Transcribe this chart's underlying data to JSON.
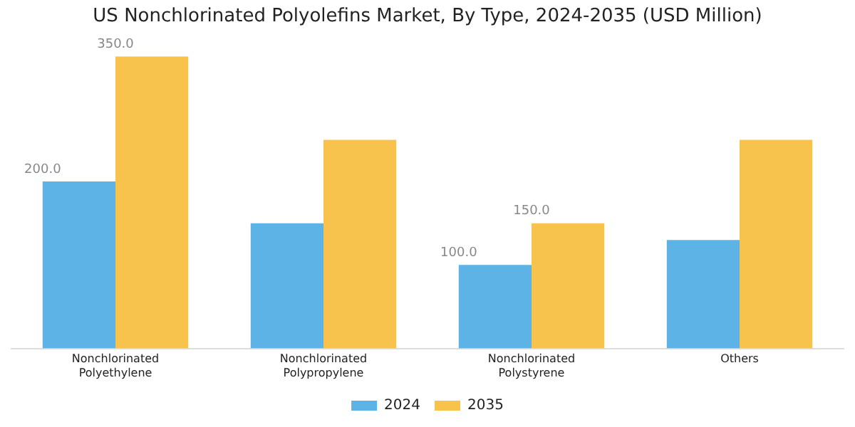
{
  "chart_data": {
    "type": "bar",
    "title": "US Nonchlorinated Polyolefins Market, By Type, 2024-2035 (USD Million)",
    "categories": [
      "Nonchlorinated Polyethylene",
      "Nonchlorinated Polypropylene",
      "Nonchlorinated Polystyrene",
      "Others"
    ],
    "series": [
      {
        "name": "2024",
        "color": "#5db3e6",
        "values": [
          200,
          150,
          100,
          130
        ],
        "value_labels": [
          "200.0",
          null,
          "100.0",
          null
        ]
      },
      {
        "name": "2035",
        "color": "#f8c34c",
        "values": [
          350,
          250,
          150,
          250
        ],
        "value_labels": [
          "350.0",
          null,
          "150.0",
          null
        ]
      }
    ],
    "legend": "bottom",
    "grid": false
  }
}
